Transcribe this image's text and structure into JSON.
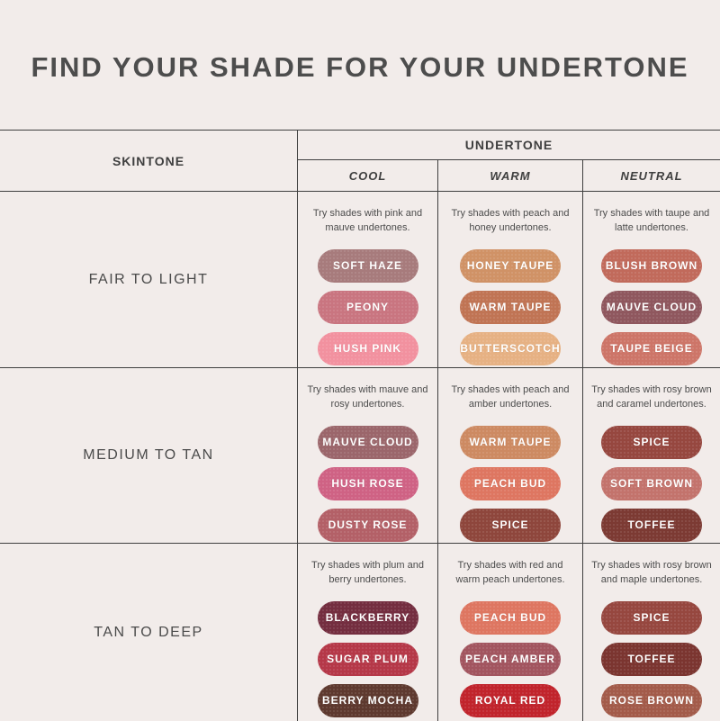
{
  "page": {
    "title": "FIND YOUR SHADE FOR YOUR UNDERTONE",
    "background_color": "#f2ecea",
    "border_color": "#3f3f3f",
    "title_color": "#4d4d4d"
  },
  "table": {
    "skintone_header": "SKINTONE",
    "undertone_header": "UNDERTONE",
    "undertone_columns": [
      "COOL",
      "WARM",
      "NEUTRAL"
    ],
    "rows": [
      {
        "skintone": "FAIR TO LIGHT",
        "cells": [
          {
            "description": "Try shades with pink and mauve undertones.",
            "shades": [
              {
                "name": "SOFT HAZE",
                "color": "#a77b7c"
              },
              {
                "name": "PEONY",
                "color": "#c97580"
              },
              {
                "name": "HUSH PINK",
                "color": "#f2919f"
              }
            ]
          },
          {
            "description": "Try shades with peach and honey undertones.",
            "shades": [
              {
                "name": "HONEY TAUPE",
                "color": "#d09266"
              },
              {
                "name": "WARM TAUPE",
                "color": "#c07454"
              },
              {
                "name": "BUTTERSCOTCH",
                "color": "#e6b183"
              }
            ]
          },
          {
            "description": "Try shades with taupe and latte undertones.",
            "shades": [
              {
                "name": "BLUSH BROWN",
                "color": "#c16a5b"
              },
              {
                "name": "MAUVE CLOUD",
                "color": "#8f575e"
              },
              {
                "name": "TAUPE BEIGE",
                "color": "#cd7568"
              }
            ]
          }
        ]
      },
      {
        "skintone": "MEDIUM TO TAN",
        "cells": [
          {
            "description": "Try shades with mauve and rosy undertones.",
            "shades": [
              {
                "name": "MAUVE CLOUD",
                "color": "#9b666b"
              },
              {
                "name": "HUSH ROSE",
                "color": "#cf6284"
              },
              {
                "name": "DUSTY ROSE",
                "color": "#b36067"
              }
            ]
          },
          {
            "description": "Try shades with peach and amber undertones.",
            "shades": [
              {
                "name": "WARM TAUPE",
                "color": "#cd8a62"
              },
              {
                "name": "PEACH BUD",
                "color": "#de7661"
              },
              {
                "name": "SPICE",
                "color": "#8e463c"
              }
            ]
          },
          {
            "description": "Try shades with rosy brown and caramel undertones.",
            "shades": [
              {
                "name": "SPICE",
                "color": "#96473f"
              },
              {
                "name": "SOFT BROWN",
                "color": "#c3736c"
              },
              {
                "name": "TOFFEE",
                "color": "#7c3a33"
              }
            ]
          }
        ]
      },
      {
        "skintone": "TAN TO DEEP",
        "cells": [
          {
            "description": "Try shades with plum and berry undertones.",
            "shades": [
              {
                "name": "BLACKBERRY",
                "color": "#742e40"
              },
              {
                "name": "SUGAR PLUM",
                "color": "#b53848"
              },
              {
                "name": "BERRY MOCHA",
                "color": "#5e392f"
              }
            ]
          },
          {
            "description": "Try shades with red and warm peach undertones.",
            "shades": [
              {
                "name": "PEACH BUD",
                "color": "#de7661"
              },
              {
                "name": "PEACH AMBER",
                "color": "#a2555f"
              },
              {
                "name": "ROYAL RED",
                "color": "#c1242c"
              }
            ]
          },
          {
            "description": "Try shades with rosy brown and maple undertones.",
            "shades": [
              {
                "name": "SPICE",
                "color": "#96473f"
              },
              {
                "name": "TOFFEE",
                "color": "#7b3530"
              },
              {
                "name": "ROSE BROWN",
                "color": "#a35b4a"
              }
            ]
          }
        ]
      }
    ]
  }
}
